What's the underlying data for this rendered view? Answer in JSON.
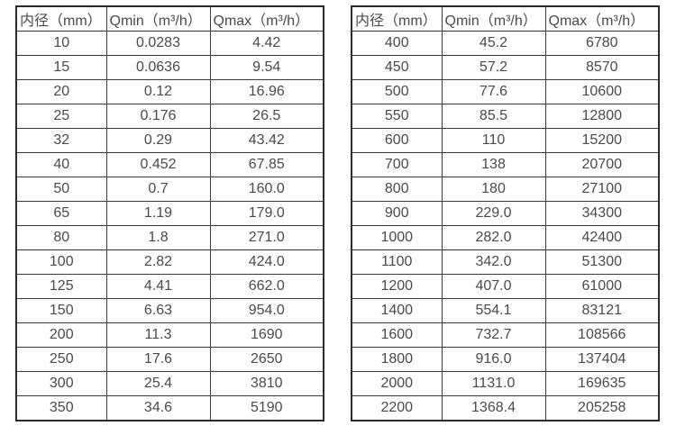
{
  "colors": {
    "background": "#ffffff",
    "text": "#4a4a4a",
    "outer_border": "#2b2b2b",
    "inner_border": "#3a3a3a"
  },
  "chart_data": [
    {
      "type": "table",
      "title": "",
      "columns": [
        "内径（mm）",
        "Qmin（m³/h）",
        "Qmax（m³/h）"
      ],
      "rows": [
        [
          "10",
          "0.0283",
          "4.42"
        ],
        [
          "15",
          "0.0636",
          "9.54"
        ],
        [
          "20",
          "0.12",
          "16.96"
        ],
        [
          "25",
          "0.176",
          "26.5"
        ],
        [
          "32",
          "0.29",
          "43.42"
        ],
        [
          "40",
          "0.452",
          "67.85"
        ],
        [
          "50",
          "0.7",
          "160.0"
        ],
        [
          "65",
          "1.19",
          "179.0"
        ],
        [
          "80",
          "1.8",
          "271.0"
        ],
        [
          "100",
          "2.82",
          "424.0"
        ],
        [
          "125",
          "4.41",
          "662.0"
        ],
        [
          "150",
          "6.63",
          "954.0"
        ],
        [
          "200",
          "11.3",
          "1690"
        ],
        [
          "250",
          "17.6",
          "2650"
        ],
        [
          "300",
          "25.4",
          "3810"
        ],
        [
          "350",
          "34.6",
          "5190"
        ]
      ]
    },
    {
      "type": "table",
      "title": "",
      "columns": [
        "内径（mm）",
        "Qmin（m³/h）",
        "Qmax（m³/h）"
      ],
      "rows": [
        [
          "400",
          "45.2",
          "6780"
        ],
        [
          "450",
          "57.2",
          "8570"
        ],
        [
          "500",
          "77.6",
          "10600"
        ],
        [
          "550",
          "85.5",
          "12800"
        ],
        [
          "600",
          "110",
          "15200"
        ],
        [
          "700",
          "138",
          "20700"
        ],
        [
          "800",
          "180",
          "27100"
        ],
        [
          "900",
          "229.0",
          "34300"
        ],
        [
          "1000",
          "282.0",
          "42400"
        ],
        [
          "1100",
          "342.0",
          "51300"
        ],
        [
          "1200",
          "407.0",
          "61000"
        ],
        [
          "1400",
          "554.1",
          "83121"
        ],
        [
          "1600",
          "732.7",
          "108566"
        ],
        [
          "1800",
          "916.0",
          "137404"
        ],
        [
          "2000",
          "1131.0",
          "169635"
        ],
        [
          "2200",
          "1368.4",
          "205258"
        ]
      ]
    }
  ]
}
